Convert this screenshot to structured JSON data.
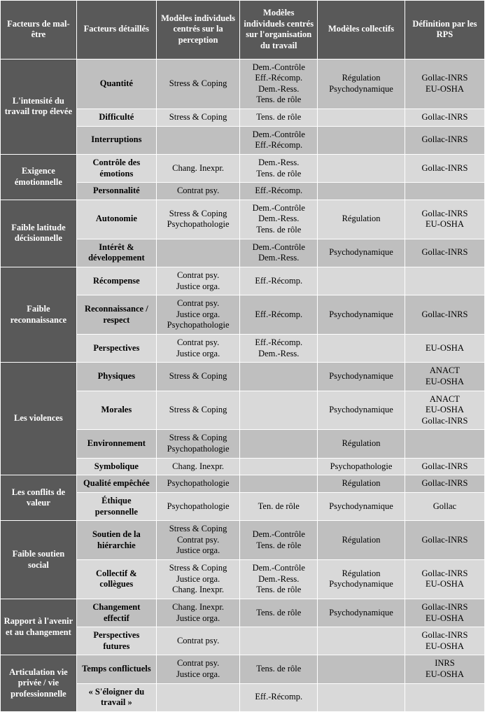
{
  "headers": [
    "Facteurs de mal-être",
    "Facteurs détaillés",
    "Modèles individuels centrés sur la perception",
    "Modèles individuels centrés sur l'organisation du travail",
    "Modèles collectifs",
    "Définition par les RPS"
  ],
  "groups": [
    {
      "label": "L'intensité du travail trop élevée",
      "rows": [
        {
          "shade": "dark",
          "cells": [
            "Quantité",
            "Stress & Coping",
            "Dem.-Contrôle\nEff.-Récomp.\nDem.-Ress.\nTens. de rôle",
            "Régulation\nPsychodynamique",
            "Gollac-INRS\nEU-OSHA"
          ]
        },
        {
          "shade": "light",
          "cells": [
            "Difficulté",
            "Stress & Coping",
            "Tens. de rôle",
            "",
            "Gollac-INRS"
          ]
        },
        {
          "shade": "dark",
          "cells": [
            "Interruptions",
            "",
            "Dem.-Contrôle\nEff.-Récomp.",
            "",
            "Gollac-INRS"
          ]
        }
      ]
    },
    {
      "label": "Exigence émotionnelle",
      "rows": [
        {
          "shade": "light",
          "cells": [
            "Contrôle des émotions",
            "Chang. Inexpr.",
            "Dem.-Ress.\nTens. de rôle",
            "",
            "Gollac-INRS"
          ]
        },
        {
          "shade": "dark",
          "cells": [
            "Personnalité",
            "Contrat psy.",
            "Eff.-Récomp.",
            "",
            ""
          ]
        }
      ]
    },
    {
      "label": "Faible latitude décisionnelle",
      "rows": [
        {
          "shade": "light",
          "cells": [
            "Autonomie",
            "Stress & Coping\nPsychopathologie",
            "Dem.-Contrôle\nDem.-Ress.\nTens. de rôle",
            "Régulation",
            "Gollac-INRS\nEU-OSHA"
          ]
        },
        {
          "shade": "dark",
          "cells": [
            "Intérêt & développement",
            "",
            "Dem.-Contrôle\nDem.-Ress.",
            "Psychodynamique",
            "Gollac-INRS"
          ]
        }
      ]
    },
    {
      "label": "Faible reconnaissance",
      "rows": [
        {
          "shade": "light",
          "cells": [
            "Récompense",
            "Contrat psy.\nJustice orga.",
            "Eff.-Récomp.",
            "",
            ""
          ]
        },
        {
          "shade": "dark",
          "cells": [
            "Reconnaissance / respect",
            "Contrat psy.\nJustice orga.\nPsychopathologie",
            "Eff.-Récomp.",
            "Psychodynamique",
            "Gollac-INRS"
          ]
        },
        {
          "shade": "light",
          "cells": [
            "Perspectives",
            "Contrat psy.\nJustice orga.",
            "Eff.-Récomp.\nDem.-Ress.",
            "",
            "EU-OSHA"
          ]
        }
      ]
    },
    {
      "label": "Les violences",
      "rows": [
        {
          "shade": "dark",
          "cells": [
            "Physiques",
            "Stress & Coping",
            "",
            "Psychodynamique",
            "ANACT\nEU-OSHA"
          ]
        },
        {
          "shade": "light",
          "cells": [
            "Morales",
            "Stress & Coping",
            "",
            "Psychodynamique",
            "ANACT\nEU-OSHA\nGollac-INRS"
          ]
        },
        {
          "shade": "dark",
          "cells": [
            "Environnement",
            "Stress & Coping\nPsychopathologie",
            "",
            "Régulation",
            ""
          ]
        },
        {
          "shade": "light",
          "cells": [
            "Symbolique",
            "Chang. Inexpr.",
            "",
            "Psychopathologie",
            "Gollac-INRS"
          ]
        }
      ]
    },
    {
      "label": "Les conflits de valeur",
      "rows": [
        {
          "shade": "dark",
          "cells": [
            "Qualité empêchée",
            "Psychopathologie",
            "",
            "Régulation",
            "Gollac-INRS"
          ]
        },
        {
          "shade": "light",
          "cells": [
            "Éthique personnelle",
            "Psychopathologie",
            "Ten. de rôle",
            "Psychodynamique",
            "Gollac"
          ]
        }
      ]
    },
    {
      "label": "Faible soutien social",
      "rows": [
        {
          "shade": "dark",
          "cells": [
            "Soutien de la hiérarchie",
            "Stress & Coping\nContrat psy.\nJustice orga.",
            "Dem.-Contrôle\nTens. de rôle",
            "Régulation",
            "Gollac-INRS"
          ]
        },
        {
          "shade": "light",
          "cells": [
            "Collectif & collègues",
            "Stress & Coping\nJustice orga.\nChang. Inexpr.",
            "Dem.-Contrôle\nDem.-Ress.\nTens. de rôle",
            "Régulation\nPsychodynamique",
            "Gollac-INRS\nEU-OSHA"
          ]
        }
      ]
    },
    {
      "label": "Rapport à l'avenir et au changement",
      "rows": [
        {
          "shade": "dark",
          "cells": [
            "Changement effectif",
            "Chang. Inexpr.\nJustice orga.",
            "Tens. de rôle",
            "Psychodynamique",
            "Gollac-INRS\nEU-OSHA"
          ]
        },
        {
          "shade": "light",
          "cells": [
            "Perspectives futures",
            "Contrat psy.",
            "",
            "",
            "Gollac-INRS\nEU-OSHA"
          ]
        }
      ]
    },
    {
      "label": "Articulation vie privée / vie professionnelle",
      "rows": [
        {
          "shade": "dark",
          "cells": [
            "Temps conflictuels",
            "Contrat psy.\nJustice orga.",
            "Tens. de rôle",
            "",
            "INRS\nEU-OSHA"
          ]
        },
        {
          "shade": "light",
          "cells": [
            "« S'éloigner du travail »",
            "",
            "Eff.-Récomp.",
            "",
            ""
          ]
        }
      ]
    }
  ]
}
